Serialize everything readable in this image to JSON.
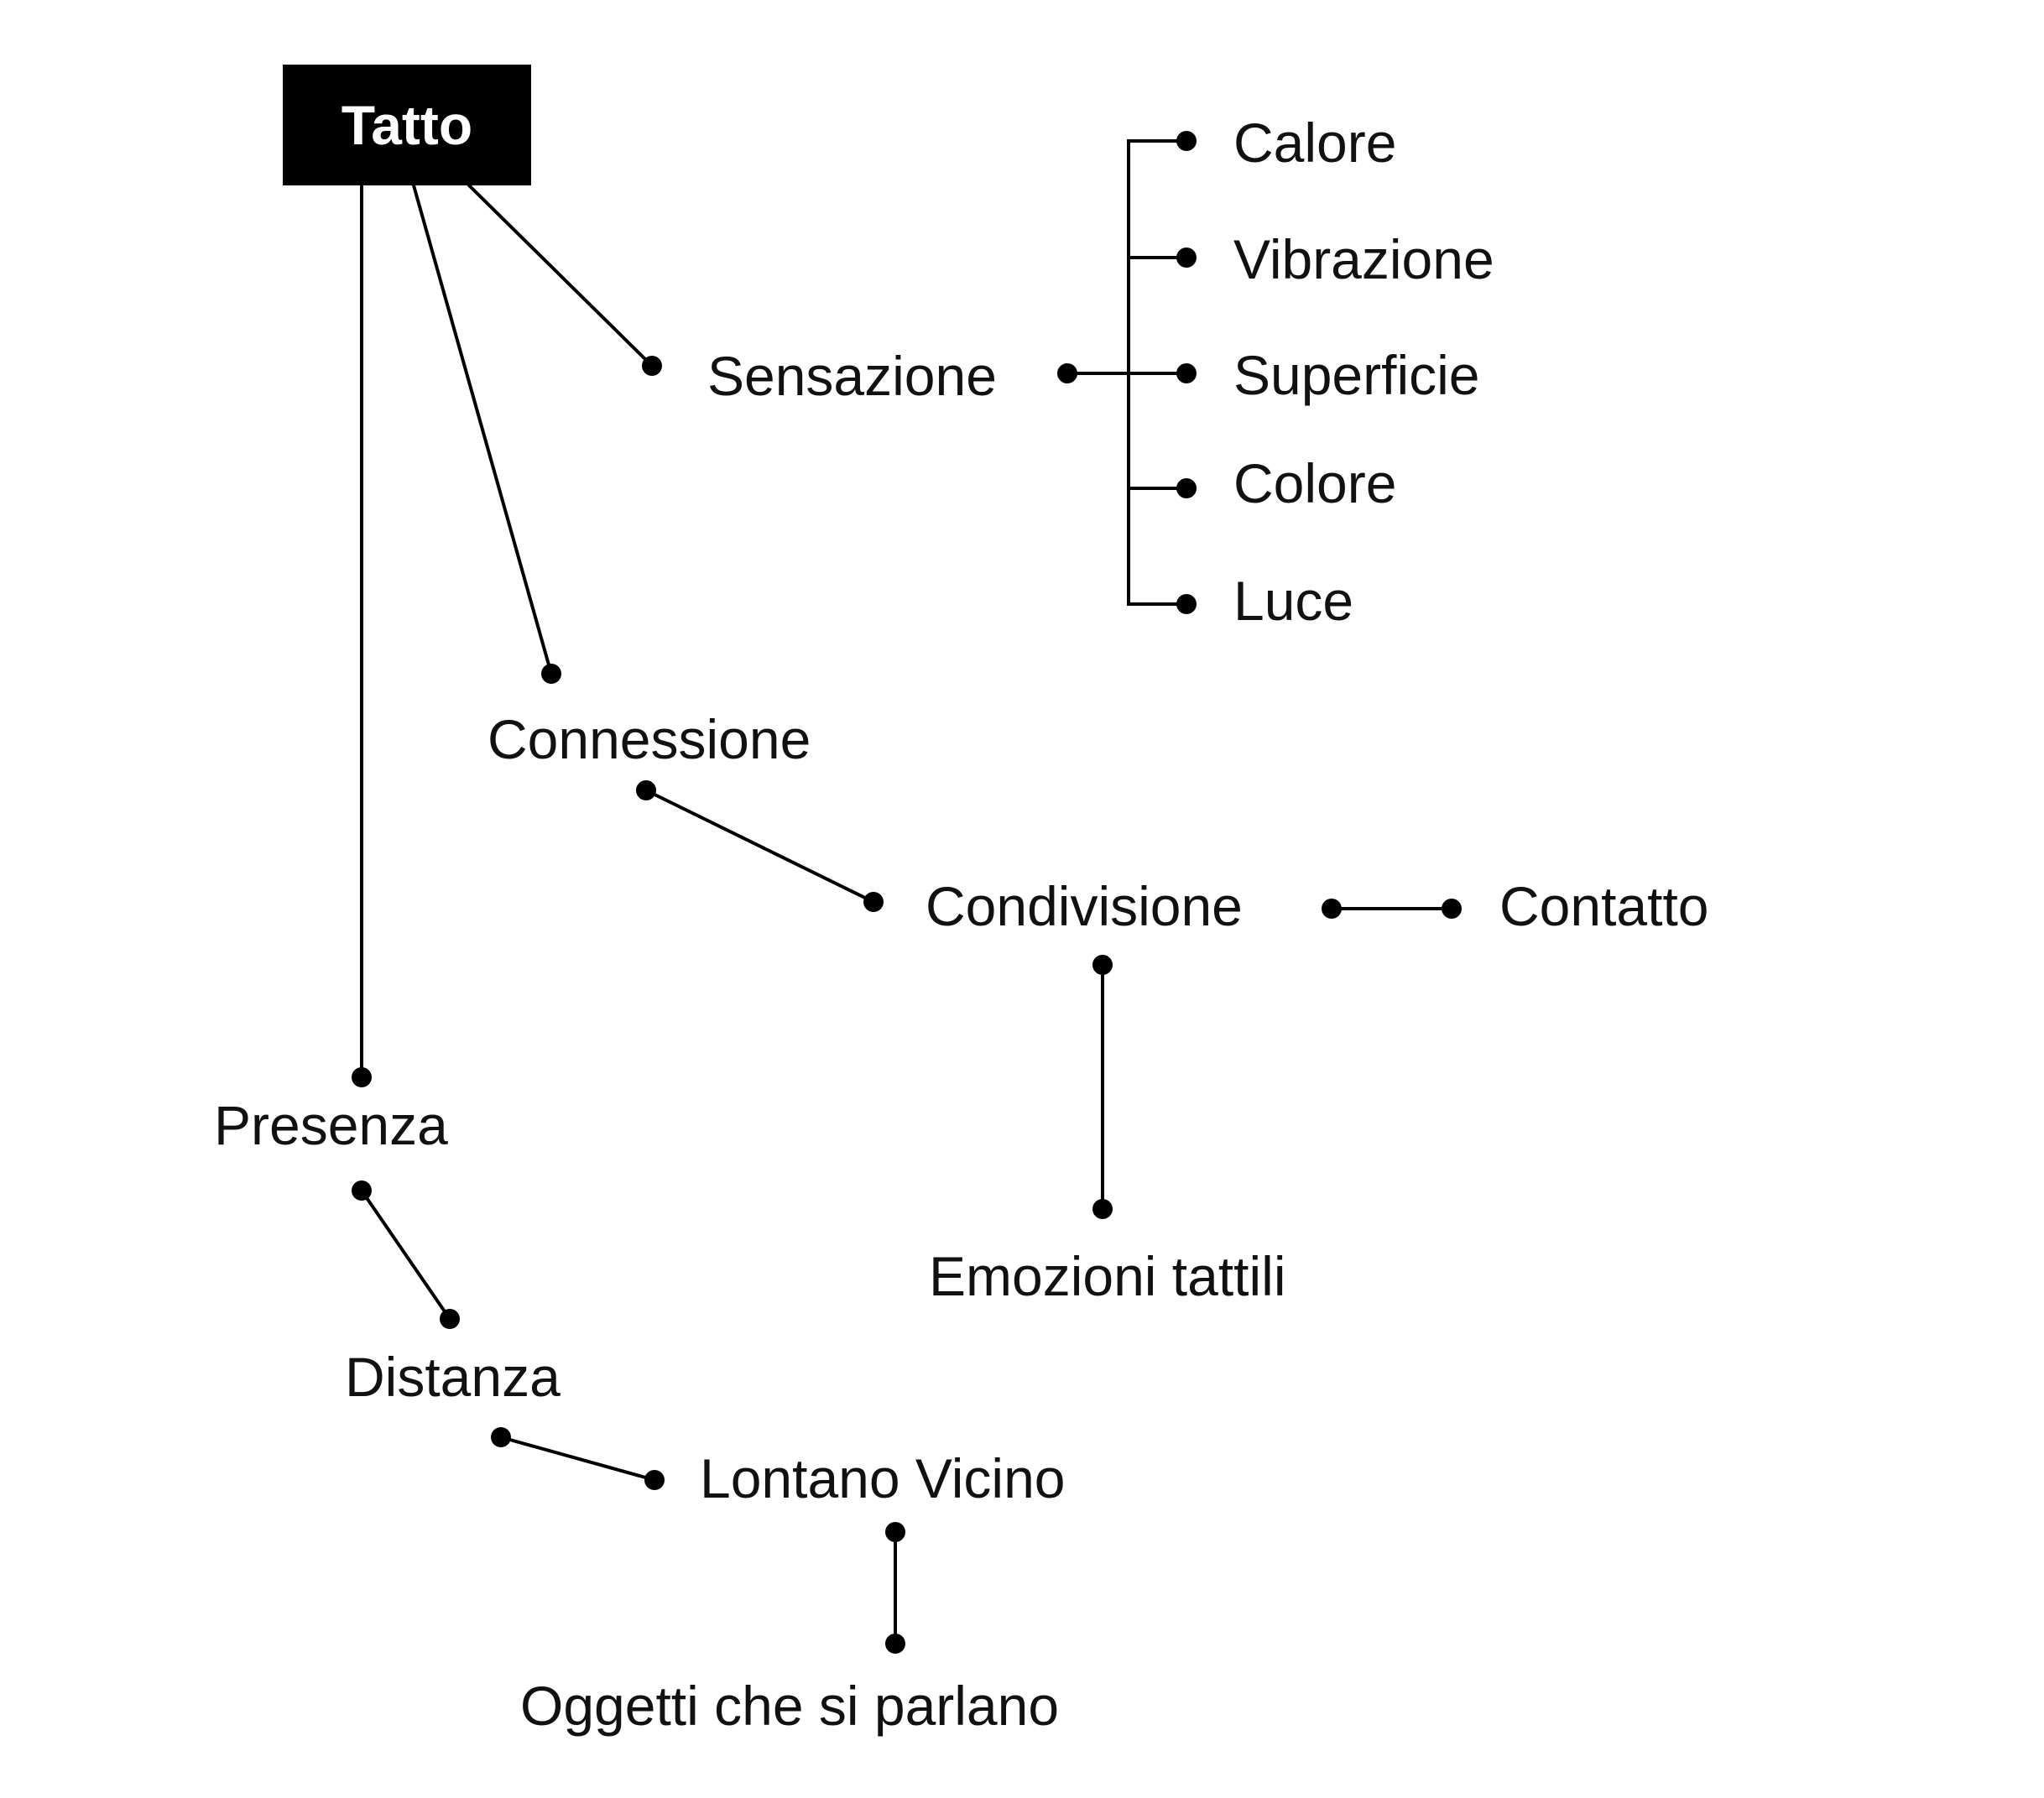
{
  "diagram": {
    "root": {
      "label": "Tatto"
    },
    "nodes": {
      "sensazione": "Sensazione",
      "calore": "Calore",
      "vibrazione": "Vibrazione",
      "superficie": "Superficie",
      "colore": "Colore",
      "luce": "Luce",
      "connessione": "Connessione",
      "condivisione": "Condivisione",
      "contatto": "Contatto",
      "emozioni_tattili": "Emozioni tattili",
      "presenza": "Presenza",
      "distanza": "Distanza",
      "lontano_vicino": "Lontano Vicino",
      "oggetti": "Oggetti che si parlano"
    },
    "edges": [
      [
        "Tatto",
        "Sensazione"
      ],
      [
        "Tatto",
        "Connessione"
      ],
      [
        "Tatto",
        "Presenza"
      ],
      [
        "Sensazione",
        "Calore"
      ],
      [
        "Sensazione",
        "Vibrazione"
      ],
      [
        "Sensazione",
        "Superficie"
      ],
      [
        "Sensazione",
        "Colore"
      ],
      [
        "Sensazione",
        "Luce"
      ],
      [
        "Connessione",
        "Condivisione"
      ],
      [
        "Condivisione",
        "Contatto"
      ],
      [
        "Condivisione",
        "Emozioni tattili"
      ],
      [
        "Presenza",
        "Distanza"
      ],
      [
        "Distanza",
        "Lontano Vicino"
      ],
      [
        "Lontano Vicino",
        "Oggetti che si parlano"
      ]
    ]
  }
}
